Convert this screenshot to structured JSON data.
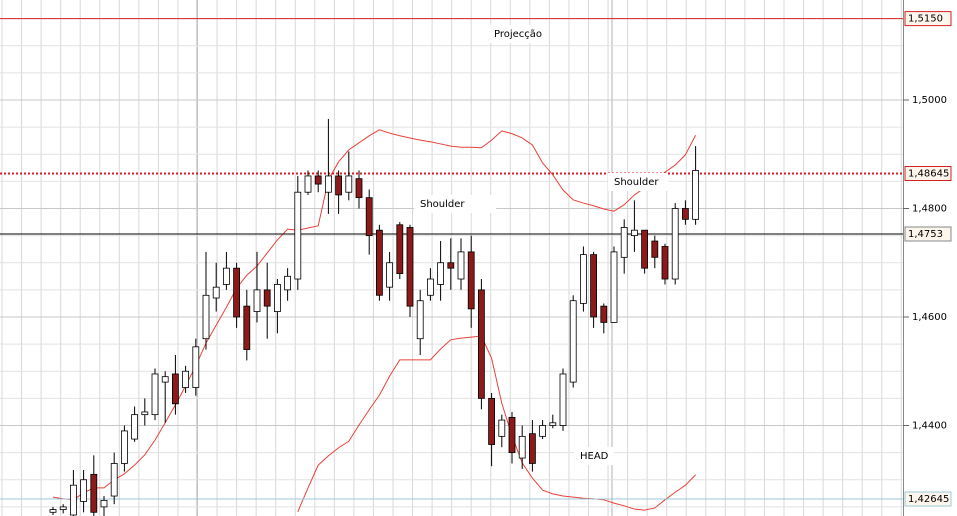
{
  "chart_data": {
    "type": "candlestick",
    "categories": [
      null,
      null,
      null,
      null,
      null,
      null,
      null,
      null,
      null,
      null,
      null,
      null,
      null,
      null,
      null,
      null,
      null,
      null,
      null,
      null,
      null,
      null,
      null,
      null,
      null,
      null,
      null,
      null,
      null,
      null,
      null,
      null,
      null,
      null,
      null,
      null,
      null,
      null,
      null,
      null,
      null,
      null,
      null,
      null,
      null,
      null,
      null,
      null,
      null,
      null,
      null,
      null,
      null,
      null,
      null,
      null,
      null,
      null,
      null,
      null,
      null,
      null,
      null,
      null
    ],
    "open": [
      1.424,
      1.4245,
      1.4235,
      1.426,
      1.431,
      1.425,
      1.427,
      1.433,
      1.4375,
      1.442,
      1.442,
      1.448,
      1.4495,
      1.447,
      1.447,
      1.456,
      1.4635,
      1.466,
      1.469,
      1.462,
      1.461,
      1.465,
      1.461,
      1.465,
      1.467,
      1.483,
      1.486,
      1.483,
      1.486,
      1.483,
      1.4855,
      1.482,
      1.476,
      1.4655,
      1.477,
      1.4765,
      1.456,
      1.464,
      1.466,
      1.47,
      1.467,
      1.472,
      1.465,
      1.445,
      1.438,
      1.4415,
      1.434,
      1.4385,
      1.438,
      1.44,
      1.44,
      1.448,
      1.4625,
      1.4715,
      1.462,
      1.459,
      1.471,
      1.475,
      1.476,
      1.474,
      1.473,
      1.467,
      1.48,
      1.478
    ],
    "high": [
      1.425,
      1.4255,
      1.4318,
      1.4318,
      1.4345,
      1.427,
      1.435,
      1.44,
      1.4435,
      1.445,
      1.4505,
      1.45,
      1.453,
      1.451,
      1.456,
      1.472,
      1.47,
      1.472,
      1.47,
      1.465,
      1.472,
      1.47,
      1.467,
      1.469,
      1.486,
      1.487,
      1.487,
      1.4965,
      1.487,
      1.4905,
      1.487,
      1.4835,
      1.477,
      1.472,
      1.4775,
      1.477,
      1.465,
      1.469,
      1.474,
      1.4745,
      1.4745,
      1.475,
      1.467,
      1.446,
      1.442,
      1.4425,
      1.44,
      1.441,
      1.441,
      1.442,
      1.4505,
      1.464,
      1.473,
      1.472,
      1.4625,
      1.473,
      1.478,
      1.4815,
      1.476,
      1.475,
      1.4735,
      1.481,
      1.4815,
      1.4915
    ],
    "low": [
      1.4235,
      1.4238,
      1.423,
      1.424,
      1.423,
      1.423,
      1.4255,
      1.4315,
      1.437,
      1.44,
      1.441,
      1.4405,
      1.442,
      1.446,
      1.4455,
      1.454,
      1.461,
      1.465,
      1.458,
      1.452,
      1.459,
      1.456,
      1.457,
      1.463,
      1.465,
      1.4825,
      1.483,
      1.479,
      1.479,
      1.4815,
      1.48,
      1.4715,
      1.463,
      1.463,
      1.467,
      1.46,
      1.453,
      1.463,
      1.463,
      1.465,
      1.465,
      1.458,
      1.443,
      1.4325,
      1.436,
      1.433,
      1.432,
      1.4315,
      1.4375,
      1.4395,
      1.439,
      1.447,
      1.461,
      1.458,
      1.457,
      1.459,
      1.468,
      1.472,
      1.468,
      1.469,
      1.466,
      1.466,
      1.477,
      1.477
    ],
    "close": [
      1.4245,
      1.425,
      1.429,
      1.43,
      1.424,
      1.4262,
      1.433,
      1.439,
      1.442,
      1.4425,
      1.4495,
      1.449,
      1.444,
      1.45,
      1.4545,
      1.464,
      1.4655,
      1.469,
      1.46,
      1.454,
      1.465,
      1.462,
      1.466,
      1.4675,
      1.483,
      1.486,
      1.4845,
      1.486,
      1.4825,
      1.486,
      1.482,
      1.475,
      1.464,
      1.47,
      1.468,
      1.462,
      1.463,
      1.467,
      1.47,
      1.469,
      1.472,
      1.4615,
      1.445,
      1.4365,
      1.441,
      1.435,
      1.438,
      1.433,
      1.44,
      1.4405,
      1.4495,
      1.463,
      1.4715,
      1.46,
      1.459,
      1.472,
      1.4765,
      1.476,
      1.469,
      1.471,
      1.467,
      1.48,
      1.478,
      1.487
    ],
    "up_color": "#ffffff",
    "down_color": "#8b1a1a",
    "bands": [
      {
        "color": "#e8423a",
        "values": [
          1.4268,
          1.4265,
          1.4263,
          1.4276,
          1.4285,
          1.4285,
          1.43,
          1.4311,
          1.4327,
          1.4346,
          1.4373,
          1.4405,
          1.4438,
          1.4473,
          1.451,
          1.4552,
          1.4585,
          1.4618,
          1.4653,
          1.4677,
          1.4694,
          1.4718,
          1.4742,
          1.4762,
          1.476,
          1.4764,
          1.4768,
          1.4853,
          1.4886,
          1.4908,
          1.4921,
          1.4934,
          1.4945,
          1.4939,
          1.4934,
          1.493,
          1.4926,
          1.4923,
          1.4919,
          1.4915,
          1.4913,
          1.4913,
          1.4912,
          1.4926,
          1.4943,
          1.4938,
          1.493,
          1.4917,
          1.4884,
          1.4862,
          1.4834,
          1.4816,
          1.481,
          1.4805,
          1.4799,
          1.4795,
          1.4807,
          1.4825,
          1.4838,
          1.4853,
          1.4867,
          1.488,
          1.4899,
          1.4935
        ]
      },
      {
        "color": "#e8423a",
        "values": [
          null,
          null,
          null,
          null,
          null,
          null,
          null,
          null,
          null,
          null,
          null,
          null,
          null,
          null,
          null,
          null,
          null,
          null,
          null,
          null,
          null,
          null,
          null,
          null,
          1.4241,
          1.4285,
          1.4327,
          1.4344,
          1.4359,
          1.4371,
          1.4401,
          1.4429,
          1.4456,
          1.4491,
          1.4521,
          1.4521,
          1.4521,
          1.4521,
          1.4541,
          1.4558,
          1.4561,
          1.4563,
          1.4565,
          1.4524,
          1.4441,
          1.4381,
          1.4331,
          1.4303,
          1.4281,
          1.4274,
          1.427,
          1.4268,
          1.4266,
          1.4265,
          1.4263,
          1.4257,
          1.4252,
          1.4246,
          1.4244,
          1.4248,
          1.4263,
          1.4277,
          1.429,
          1.4309
        ]
      }
    ],
    "levels": [
      {
        "value": 1.515,
        "label": "1,5150",
        "color": "#d62020",
        "style": "solid"
      },
      {
        "value": 1.48645,
        "label": "1,48645",
        "color": "#d62020",
        "style": "dotted"
      },
      {
        "value": 1.4753,
        "label": "1,4753",
        "color": "#000000",
        "style": "solid"
      },
      {
        "value": 1.42645,
        "label": "1,42645",
        "color": "#9cc8d8",
        "style": "solid"
      }
    ],
    "ylim": [
      1.42332,
      1.51843
    ],
    "yticks": [
      {
        "value": 1.5,
        "label": "1,5000"
      },
      {
        "value": 1.48,
        "label": "1,4800"
      },
      {
        "value": 1.46,
        "label": "1,4600"
      },
      {
        "value": 1.44,
        "label": "1,4400"
      }
    ],
    "grid": true,
    "annotations": [
      "Projecção",
      "Shoulder",
      "Shoulder",
      "HEAD"
    ]
  }
}
